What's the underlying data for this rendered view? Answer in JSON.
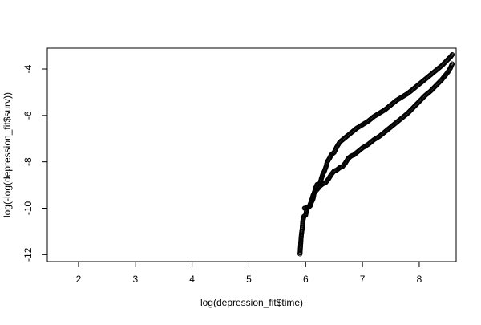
{
  "chart_data": {
    "type": "scatter",
    "title": "",
    "xlabel": "log(depression_fit$time)",
    "ylabel": "log(-log(depression_fit$surv))",
    "xlim": [
      1.45,
      8.65
    ],
    "ylim": [
      -12.3,
      -3.1
    ],
    "x_ticks": [
      2,
      3,
      4,
      5,
      6,
      7,
      8
    ],
    "y_ticks": [
      -4,
      -6,
      -8,
      -10,
      -12
    ],
    "grid": false,
    "legend": "none",
    "marker": "open-circle",
    "series": [
      {
        "points": [
          [
            5.9,
            -11.97
          ],
          [
            5.92,
            -11.25
          ],
          [
            5.94,
            -10.85
          ],
          [
            5.95,
            -10.55
          ],
          [
            5.97,
            -10.35
          ],
          [
            6.0,
            -10.3
          ],
          [
            6.02,
            -10.05
          ],
          [
            6.05,
            -9.95
          ],
          [
            6.08,
            -9.9
          ],
          [
            6.1,
            -9.75
          ],
          [
            6.13,
            -9.6
          ],
          [
            6.15,
            -9.35
          ],
          [
            6.18,
            -9.1
          ],
          [
            6.2,
            -8.98
          ],
          [
            6.25,
            -8.95
          ],
          [
            6.28,
            -8.7
          ],
          [
            6.3,
            -8.55
          ],
          [
            6.33,
            -8.4
          ],
          [
            6.36,
            -8.2
          ],
          [
            6.38,
            -8.0
          ],
          [
            6.42,
            -7.85
          ],
          [
            6.45,
            -7.7
          ],
          [
            6.5,
            -7.6
          ],
          [
            6.55,
            -7.35
          ],
          [
            6.6,
            -7.15
          ],
          [
            6.7,
            -6.95
          ],
          [
            6.8,
            -6.75
          ],
          [
            6.9,
            -6.55
          ],
          [
            7.0,
            -6.4
          ],
          [
            7.1,
            -6.25
          ],
          [
            7.2,
            -6.05
          ],
          [
            7.3,
            -5.9
          ],
          [
            7.4,
            -5.75
          ],
          [
            7.5,
            -5.55
          ],
          [
            7.6,
            -5.35
          ],
          [
            7.7,
            -5.2
          ],
          [
            7.8,
            -5.05
          ],
          [
            7.9,
            -4.85
          ],
          [
            8.0,
            -4.65
          ],
          [
            8.1,
            -4.45
          ],
          [
            8.2,
            -4.25
          ],
          [
            8.3,
            -4.05
          ],
          [
            8.4,
            -3.85
          ],
          [
            8.5,
            -3.6
          ],
          [
            8.55,
            -3.48
          ],
          [
            8.58,
            -3.38
          ]
        ]
      },
      {
        "points": [
          [
            5.98,
            -10.0
          ],
          [
            6.02,
            -9.98
          ],
          [
            6.06,
            -9.95
          ],
          [
            6.1,
            -9.7
          ],
          [
            6.13,
            -9.45
          ],
          [
            6.16,
            -9.3
          ],
          [
            6.2,
            -9.2
          ],
          [
            6.25,
            -9.05
          ],
          [
            6.3,
            -8.95
          ],
          [
            6.35,
            -8.9
          ],
          [
            6.4,
            -8.75
          ],
          [
            6.45,
            -8.55
          ],
          [
            6.5,
            -8.4
          ],
          [
            6.55,
            -8.35
          ],
          [
            6.6,
            -8.25
          ],
          [
            6.65,
            -8.2
          ],
          [
            6.7,
            -8.05
          ],
          [
            6.75,
            -7.85
          ],
          [
            6.8,
            -7.75
          ],
          [
            6.85,
            -7.7
          ],
          [
            6.9,
            -7.6
          ],
          [
            7.0,
            -7.4
          ],
          [
            7.1,
            -7.25
          ],
          [
            7.2,
            -7.05
          ],
          [
            7.3,
            -6.9
          ],
          [
            7.4,
            -6.7
          ],
          [
            7.5,
            -6.5
          ],
          [
            7.6,
            -6.3
          ],
          [
            7.7,
            -6.1
          ],
          [
            7.8,
            -5.9
          ],
          [
            7.9,
            -5.65
          ],
          [
            8.0,
            -5.4
          ],
          [
            8.1,
            -5.15
          ],
          [
            8.2,
            -4.95
          ],
          [
            8.3,
            -4.7
          ],
          [
            8.4,
            -4.45
          ],
          [
            8.5,
            -4.15
          ],
          [
            8.55,
            -3.95
          ],
          [
            8.58,
            -3.78
          ]
        ]
      }
    ]
  }
}
